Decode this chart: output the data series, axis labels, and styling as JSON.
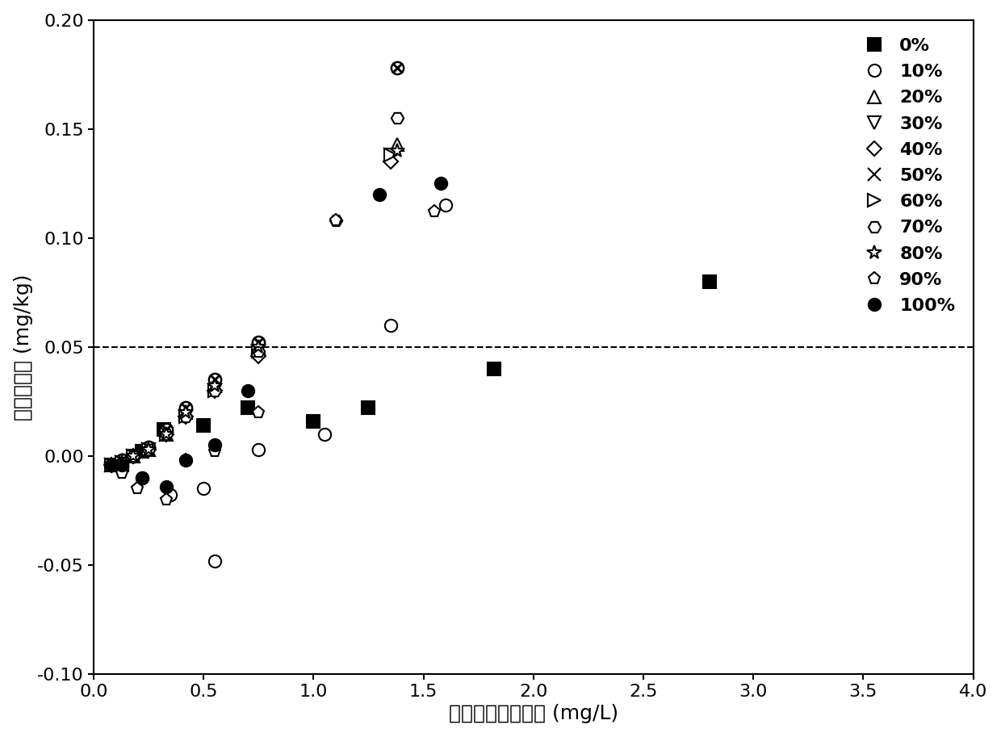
{
  "title": "",
  "xlabel": "平衡溶液氨氮浓度 (mg/L)",
  "ylabel": "氨氮吸附量 (mg/kg)",
  "xlim": [
    0,
    4.0
  ],
  "ylim": [
    -0.1,
    0.2
  ],
  "xticks": [
    0.0,
    0.5,
    1.0,
    1.5,
    2.0,
    2.5,
    3.0,
    3.5,
    4.0
  ],
  "yticks": [
    -0.1,
    -0.05,
    0.0,
    0.05,
    0.1,
    0.15,
    0.2
  ],
  "dashed_line_y": 0.05,
  "background_color": "#ffffff",
  "font_size_axis_label": 18,
  "font_size_tick_label": 16,
  "font_size_legend": 16,
  "series": [
    {
      "label": "0%",
      "marker": "s",
      "ms": 11,
      "mfc": "black",
      "mec": "black",
      "mew": 1.5,
      "x": [
        0.13,
        0.22,
        0.32,
        0.5,
        0.7,
        1.0,
        1.25,
        1.82,
        2.8
      ],
      "y": [
        -0.004,
        0.002,
        0.012,
        0.014,
        0.022,
        0.016,
        0.022,
        0.04,
        0.08
      ]
    },
    {
      "label": "10%",
      "marker": "o",
      "ms": 11,
      "mfc": "white",
      "mec": "black",
      "mew": 1.5,
      "x": [
        0.13,
        0.22,
        0.35,
        0.5,
        0.55,
        0.75,
        1.05,
        1.35,
        1.6
      ],
      "y": [
        -0.004,
        -0.01,
        -0.018,
        -0.015,
        -0.048,
        0.003,
        0.01,
        0.06,
        0.115
      ]
    },
    {
      "label": "20%",
      "marker": "^",
      "ms": 11,
      "mfc": "white",
      "mec": "black",
      "mew": 1.5,
      "x": [
        0.08,
        0.13,
        0.18,
        0.25,
        0.33,
        0.42,
        0.55,
        0.75,
        1.38
      ],
      "y": [
        -0.004,
        -0.002,
        0.0,
        0.003,
        0.01,
        0.02,
        0.032,
        0.05,
        0.143
      ]
    },
    {
      "label": "30%",
      "marker": "v",
      "ms": 11,
      "mfc": "white",
      "mec": "black",
      "mew": 1.5,
      "x": [
        0.08,
        0.13,
        0.18,
        0.25,
        0.33,
        0.42,
        0.55,
        0.75,
        1.35
      ],
      "y": [
        -0.004,
        -0.003,
        0.0,
        0.003,
        0.01,
        0.018,
        0.03,
        0.048,
        0.138
      ]
    },
    {
      "label": "40%",
      "marker": "D",
      "ms": 9,
      "mfc": "white",
      "mec": "black",
      "mew": 1.5,
      "x": [
        0.08,
        0.13,
        0.18,
        0.25,
        0.33,
        0.42,
        0.55,
        0.75,
        1.35
      ],
      "y": [
        -0.004,
        -0.003,
        0.0,
        0.003,
        0.01,
        0.018,
        0.03,
        0.046,
        0.135
      ]
    },
    {
      "label": "50%",
      "marker": "x_circle",
      "ms": 11,
      "mfc": "white",
      "mec": "black",
      "mew": 1.8,
      "x": [
        0.08,
        0.13,
        0.18,
        0.25,
        0.33,
        0.42,
        0.55,
        0.75,
        1.38
      ],
      "y": [
        -0.004,
        -0.002,
        0.0,
        0.004,
        0.012,
        0.022,
        0.035,
        0.052,
        0.178
      ]
    },
    {
      "label": "60%",
      "marker": "tri_right",
      "ms": 11,
      "mfc": "white",
      "mec": "black",
      "mew": 1.5,
      "x": [
        0.08,
        0.13,
        0.18,
        0.25,
        0.33,
        0.42,
        0.55,
        0.75,
        1.35
      ],
      "y": [
        -0.004,
        -0.003,
        0.0,
        0.003,
        0.01,
        0.018,
        0.03,
        0.048,
        0.138
      ]
    },
    {
      "label": "70%",
      "marker": "hexagon",
      "ms": 11,
      "mfc": "white",
      "mec": "black",
      "mew": 1.5,
      "x": [
        0.08,
        0.13,
        0.18,
        0.25,
        0.33,
        0.42,
        0.55,
        0.75,
        1.1,
        1.38
      ],
      "y": [
        -0.004,
        -0.003,
        0.0,
        0.003,
        0.01,
        0.018,
        0.03,
        0.048,
        0.108,
        0.155
      ]
    },
    {
      "label": "80%",
      "marker": "star",
      "ms": 13,
      "mfc": "white",
      "mec": "black",
      "mew": 1.5,
      "x": [
        0.08,
        0.13,
        0.18,
        0.25,
        0.33,
        0.42,
        0.55,
        0.75,
        1.38
      ],
      "y": [
        -0.004,
        -0.003,
        0.0,
        0.003,
        0.01,
        0.02,
        0.032,
        0.05,
        0.14
      ]
    },
    {
      "label": "90%",
      "marker": "pentagon",
      "ms": 11,
      "mfc": "white",
      "mec": "black",
      "mew": 1.5,
      "x": [
        0.08,
        0.13,
        0.2,
        0.33,
        0.42,
        0.55,
        0.75,
        1.1,
        1.55
      ],
      "y": [
        -0.004,
        -0.008,
        -0.015,
        -0.02,
        -0.002,
        0.002,
        0.02,
        0.108,
        0.112
      ]
    },
    {
      "label": "100%",
      "marker": "filled_circle",
      "ms": 11,
      "mfc": "black",
      "mec": "black",
      "mew": 1.5,
      "x": [
        0.08,
        0.13,
        0.22,
        0.33,
        0.42,
        0.55,
        0.7,
        1.3,
        1.58
      ],
      "y": [
        -0.004,
        -0.004,
        -0.01,
        -0.014,
        -0.002,
        0.005,
        0.03,
        0.12,
        0.125
      ]
    }
  ]
}
